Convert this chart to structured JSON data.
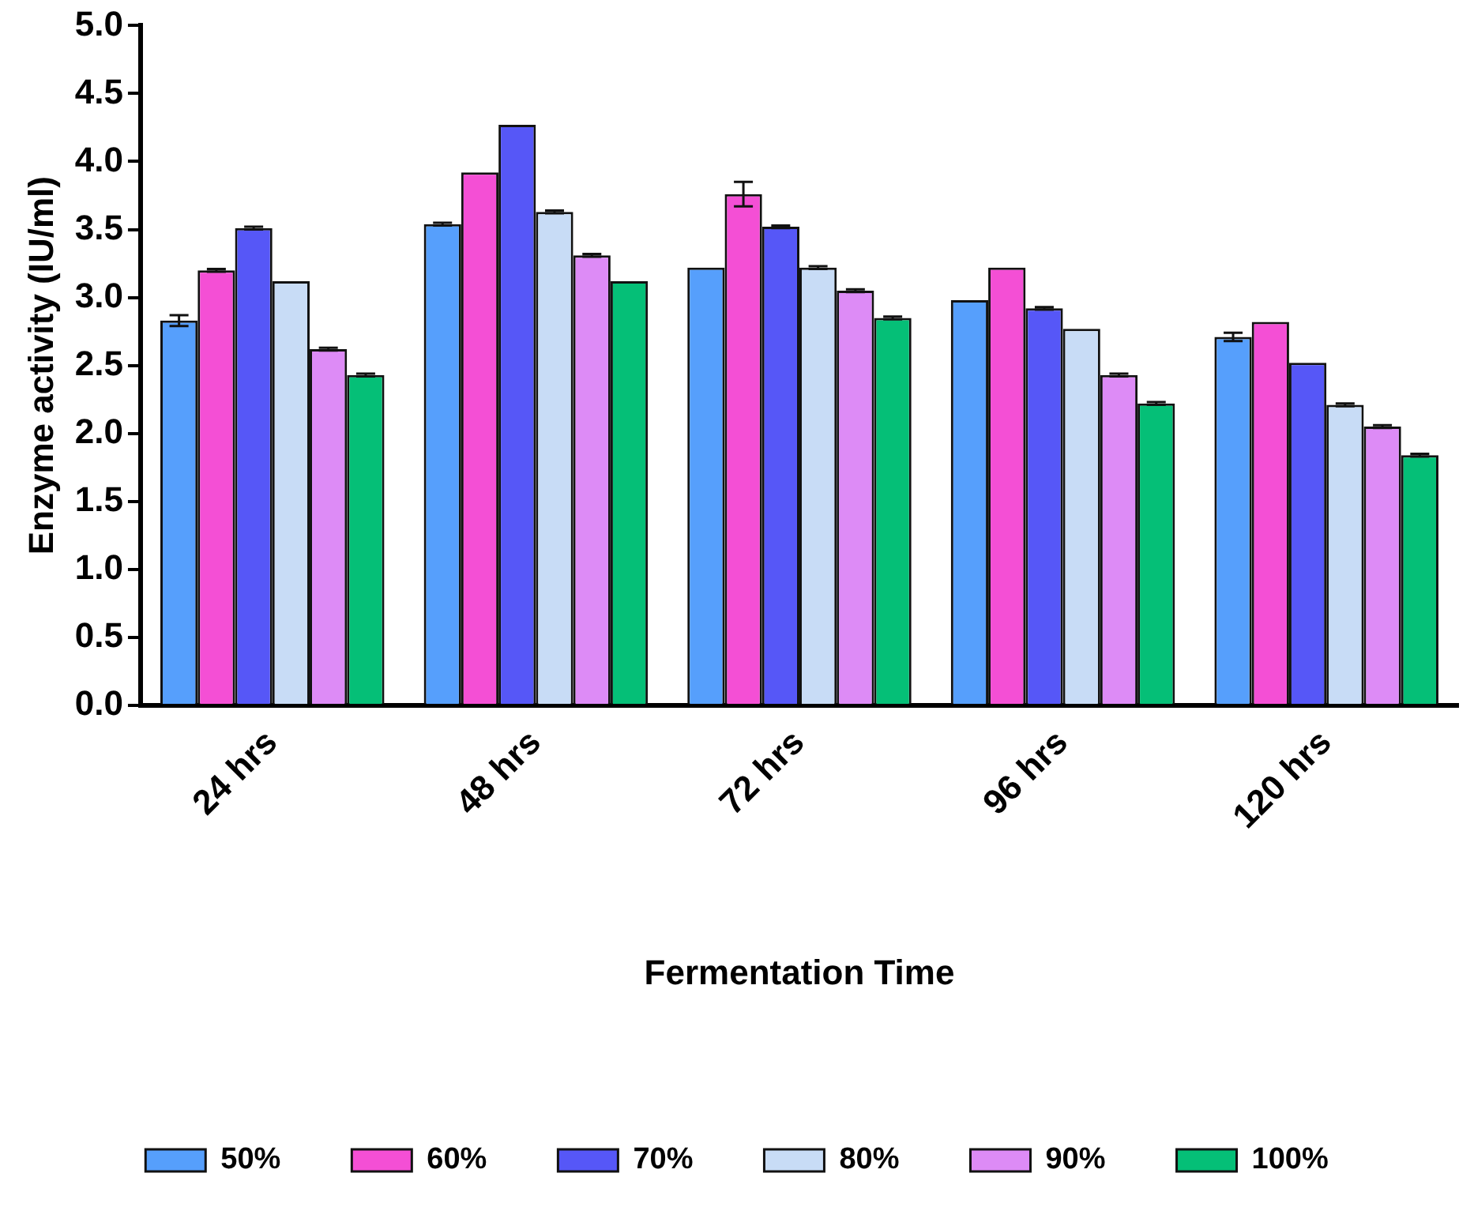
{
  "chart_data": {
    "type": "bar",
    "xlabel": "Fermentation Time",
    "ylabel": "Enzyme activity (IU/ml)",
    "categories": [
      "24 hrs",
      "48 hrs",
      "72 hrs",
      "96 hrs",
      "120 hrs"
    ],
    "series": [
      {
        "name": "50%",
        "color": "#569ffc",
        "values": [
          2.83,
          3.54,
          3.22,
          2.98,
          2.71
        ],
        "errors": [
          0.04,
          0.01,
          null,
          null,
          0.03
        ]
      },
      {
        "name": "60%",
        "color": "#f44fd5",
        "values": [
          3.2,
          3.92,
          3.76,
          3.22,
          2.82
        ],
        "errors": [
          0.01,
          null,
          0.09,
          null,
          null
        ]
      },
      {
        "name": "70%",
        "color": "#5657f7",
        "values": [
          3.51,
          4.27,
          3.52,
          2.92,
          2.52
        ],
        "errors": [
          0.01,
          null,
          0.01,
          0.01,
          null
        ]
      },
      {
        "name": "80%",
        "color": "#c8dcf6",
        "values": [
          3.12,
          3.63,
          3.22,
          2.77,
          2.21
        ],
        "errors": [
          null,
          0.01,
          0.01,
          null,
          0.01
        ]
      },
      {
        "name": "90%",
        "color": "#dd8bf6",
        "values": [
          2.62,
          3.31,
          3.05,
          2.43,
          2.05
        ],
        "errors": [
          0.01,
          0.01,
          0.01,
          0.01,
          0.01
        ]
      },
      {
        "name": "100%",
        "color": "#05bf77",
        "values": [
          2.43,
          3.12,
          2.85,
          2.22,
          1.84
        ],
        "errors": [
          0.01,
          null,
          0.01,
          0.01,
          0.01
        ]
      }
    ],
    "ylim": [
      0,
      5
    ],
    "yticks": [
      {
        "value": 0,
        "label": "0.0"
      },
      {
        "value": 0.5,
        "label": "0.5"
      },
      {
        "value": 1,
        "label": "1.0"
      },
      {
        "value": 1.5,
        "label": "1.5"
      },
      {
        "value": 2,
        "label": "2.0"
      },
      {
        "value": 2.5,
        "label": "2.5"
      },
      {
        "value": 3,
        "label": "3.0"
      },
      {
        "value": 3.5,
        "label": "3.5"
      },
      {
        "value": 4,
        "label": "4.0"
      },
      {
        "value": 4.5,
        "label": "4.5"
      },
      {
        "value": 5,
        "label": "5.0"
      }
    ],
    "grid": false,
    "legend": "bottom"
  }
}
